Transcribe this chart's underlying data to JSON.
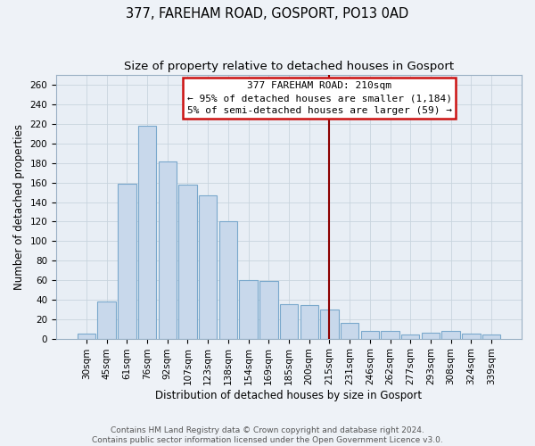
{
  "title": "377, FAREHAM ROAD, GOSPORT, PO13 0AD",
  "subtitle": "Size of property relative to detached houses in Gosport",
  "xlabel": "Distribution of detached houses by size in Gosport",
  "ylabel": "Number of detached properties",
  "categories": [
    "30sqm",
    "45sqm",
    "61sqm",
    "76sqm",
    "92sqm",
    "107sqm",
    "123sqm",
    "138sqm",
    "154sqm",
    "169sqm",
    "185sqm",
    "200sqm",
    "215sqm",
    "231sqm",
    "246sqm",
    "262sqm",
    "277sqm",
    "293sqm",
    "308sqm",
    "324sqm",
    "339sqm"
  ],
  "values": [
    5,
    38,
    159,
    218,
    182,
    158,
    147,
    120,
    60,
    59,
    35,
    34,
    30,
    16,
    8,
    8,
    4,
    6,
    8,
    5,
    4
  ],
  "bar_color": "#c8d8eb",
  "bar_edgecolor": "#7aa8cc",
  "vline_x_index": 12,
  "vline_color": "#8b0000",
  "annotation_line1": "377 FAREHAM ROAD: 210sqm",
  "annotation_line2": "← 95% of detached houses are smaller (1,184)",
  "annotation_line3": "5% of semi-detached houses are larger (59) →",
  "ylim": [
    0,
    270
  ],
  "yticks": [
    0,
    20,
    40,
    60,
    80,
    100,
    120,
    140,
    160,
    180,
    200,
    220,
    240,
    260
  ],
  "footer1": "Contains HM Land Registry data © Crown copyright and database right 2024.",
  "footer2": "Contains public sector information licensed under the Open Government Licence v3.0.",
  "bg_color": "#eef2f7",
  "plot_bg_color": "#e8eef5",
  "title_fontsize": 10.5,
  "subtitle_fontsize": 9.5,
  "axis_label_fontsize": 8.5,
  "tick_fontsize": 7.5,
  "footer_fontsize": 6.5,
  "annot_fontsize": 8.0
}
